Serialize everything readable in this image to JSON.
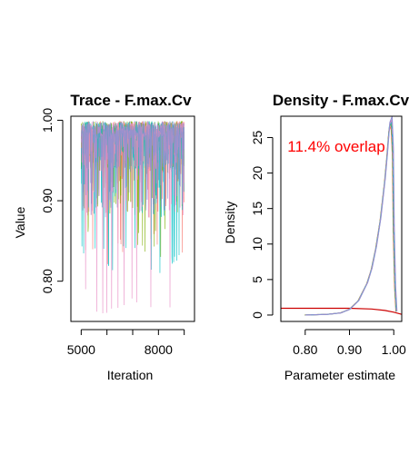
{
  "chart_data": [
    {
      "type": "line",
      "title": "Trace - F.max.Cv",
      "xlabel": "Iteration",
      "ylabel": "Value",
      "xlim": [
        4600,
        9400
      ],
      "ylim": [
        0.75,
        1.005
      ],
      "x_ticks": [
        {
          "value": 5000,
          "label": "5000"
        },
        {
          "value": 8000,
          "label": "8000"
        }
      ],
      "x_minor_ticks": [
        6000,
        7000,
        9000
      ],
      "y_ticks": [
        {
          "value": 0.8,
          "label": "0.80"
        },
        {
          "value": 0.9,
          "label": "0.90"
        },
        {
          "value": 1.0,
          "label": "1.00"
        }
      ],
      "x": [
        5000,
        9000
      ],
      "series": [
        {
          "color": "#f8766d",
          "min": 0.82,
          "upper": 0.999
        },
        {
          "color": "#7cae00",
          "min": 0.83,
          "upper": 0.999
        },
        {
          "color": "#00bfc4",
          "min": 0.81,
          "upper": 0.999
        },
        {
          "color": "#e78ac3",
          "min": 0.76,
          "upper": 0.999
        },
        {
          "color": "#9090d0",
          "min": 0.88,
          "upper": 0.999
        }
      ]
    },
    {
      "type": "line",
      "title": "Density - F.max.Cv",
      "xlabel": "Parameter estimate",
      "ylabel": "Density",
      "xlim": [
        0.745,
        1.018
      ],
      "ylim": [
        -0.9,
        28
      ],
      "x_ticks": [
        {
          "value": 0.8,
          "label": "0.80"
        },
        {
          "value": 0.9,
          "label": "0.90"
        },
        {
          "value": 1.0,
          "label": "1.00"
        }
      ],
      "y_ticks": [
        {
          "value": 0,
          "label": "0"
        },
        {
          "value": 5,
          "label": "5"
        },
        {
          "value": 10,
          "label": "10"
        },
        {
          "value": 15,
          "label": "15"
        },
        {
          "value": 20,
          "label": "20"
        },
        {
          "value": 25,
          "label": "25"
        }
      ],
      "annotation": "11.4% overlap",
      "posterior_density": {
        "colors": [
          "#f8766d",
          "#7cae00",
          "#00bfc4",
          "#e78ac3",
          "#9090d0"
        ],
        "x": [
          0.8,
          0.85,
          0.88,
          0.9,
          0.92,
          0.94,
          0.95,
          0.96,
          0.97,
          0.98,
          0.985,
          0.99,
          0.995,
          0.998,
          1.0,
          1.003,
          1.006
        ],
        "y": [
          0.0,
          0.1,
          0.3,
          0.8,
          2.0,
          4.5,
          6.5,
          9.5,
          13.5,
          19.0,
          22.5,
          26.5,
          27.3,
          23.0,
          12.0,
          4.0,
          0.5
        ]
      },
      "prior_density": {
        "color": "#cc0000",
        "x": [
          0.745,
          0.8,
          0.85,
          0.9,
          0.95,
          0.98,
          1.0,
          1.018
        ],
        "y": [
          0.95,
          0.95,
          0.95,
          0.95,
          0.85,
          0.65,
          0.4,
          0.1
        ]
      }
    }
  ]
}
